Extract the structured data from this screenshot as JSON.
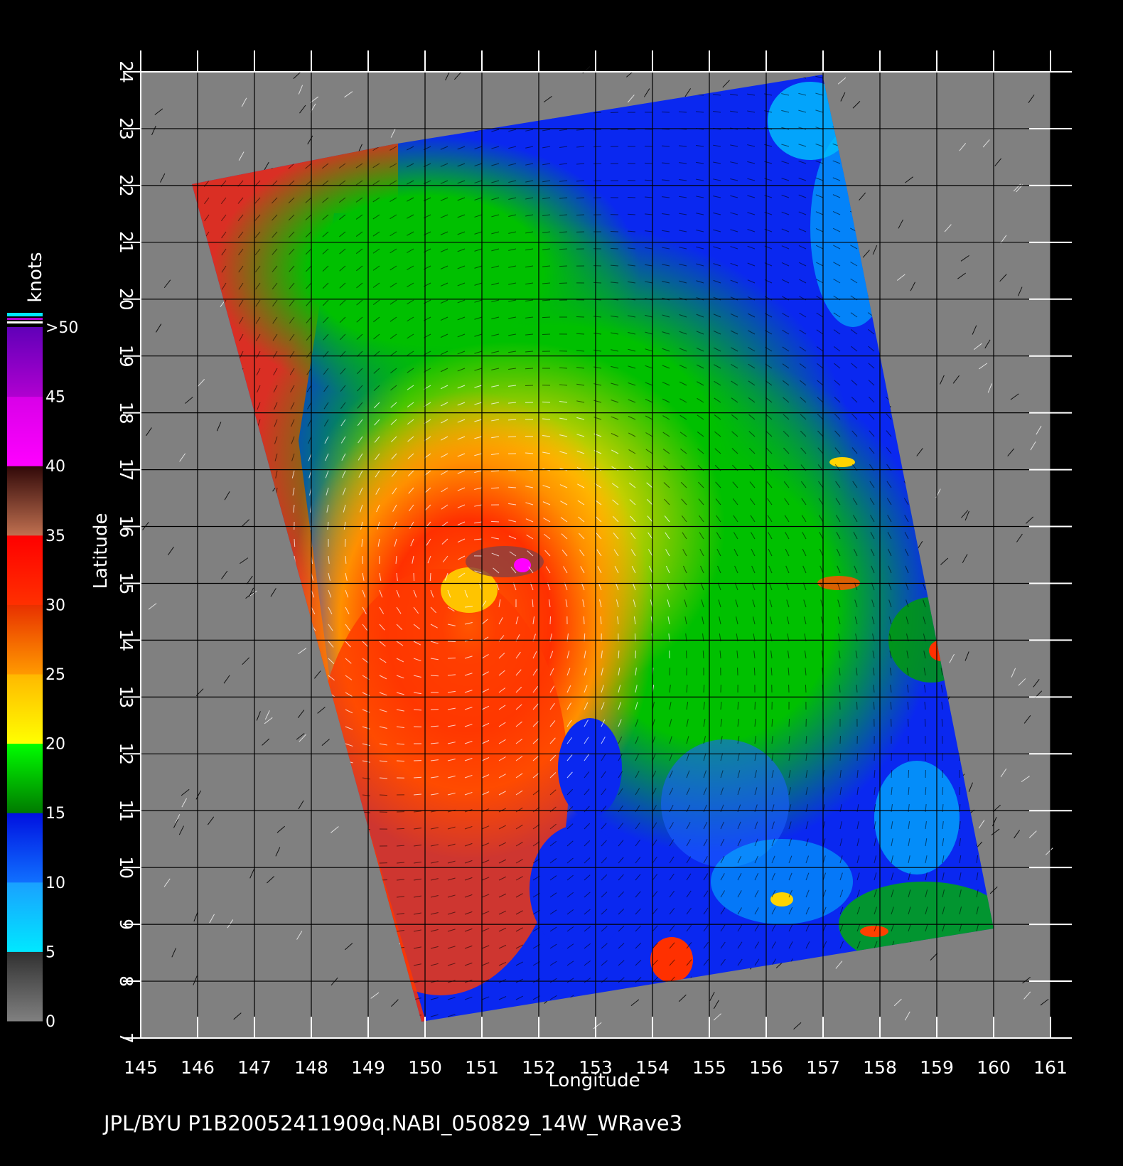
{
  "map": {
    "x_axis": {
      "label": "Longitude",
      "ticks": [
        "145",
        "146",
        "147",
        "148",
        "149",
        "150",
        "151",
        "152",
        "153",
        "154",
        "155",
        "156",
        "157",
        "158",
        "159",
        "160",
        "161"
      ],
      "range": [
        145,
        161
      ]
    },
    "y_axis": {
      "label": "Latitude",
      "ticks": [
        "7",
        "8",
        "9",
        "10",
        "11",
        "12",
        "13",
        "14",
        "15",
        "16",
        "17",
        "18",
        "19",
        "20",
        "21",
        "22",
        "23",
        "24"
      ],
      "range": [
        7,
        24
      ]
    },
    "grid": true,
    "background_color": "#808080"
  },
  "legend": {
    "unit": "knots",
    "labels": [
      "0",
      "5",
      "10",
      "15",
      "20",
      "25",
      "30",
      "35",
      "40",
      "45",
      ">50"
    ],
    "bands": [
      {
        "from": 0,
        "to": 5,
        "colors": [
          "#808080",
          "#303030"
        ]
      },
      {
        "from": 5,
        "to": 10,
        "colors": [
          "#00e8ff",
          "#1aa0ff"
        ]
      },
      {
        "from": 10,
        "to": 15,
        "colors": [
          "#1070ff",
          "#0010e0"
        ]
      },
      {
        "from": 15,
        "to": 20,
        "colors": [
          "#007a00",
          "#00ff00"
        ]
      },
      {
        "from": 20,
        "to": 25,
        "colors": [
          "#ffff00",
          "#ffb800"
        ]
      },
      {
        "from": 25,
        "to": 30,
        "colors": [
          "#ff9a00",
          "#e83000"
        ]
      },
      {
        "from": 30,
        "to": 35,
        "colors": [
          "#ff3000",
          "#ff0000"
        ]
      },
      {
        "from": 35,
        "to": 40,
        "colors": [
          "#c07050",
          "#300808"
        ]
      },
      {
        "from": 40,
        "to": 45,
        "colors": [
          "#ff00ff",
          "#d800e8"
        ]
      },
      {
        "from": 45,
        "to": 50,
        "colors": [
          "#b000d0",
          "#6000b8"
        ]
      }
    ]
  },
  "footer": {
    "caption": "JPL/BYU  P1B20052411909q.NABI_050829_14W_WRave3"
  }
}
